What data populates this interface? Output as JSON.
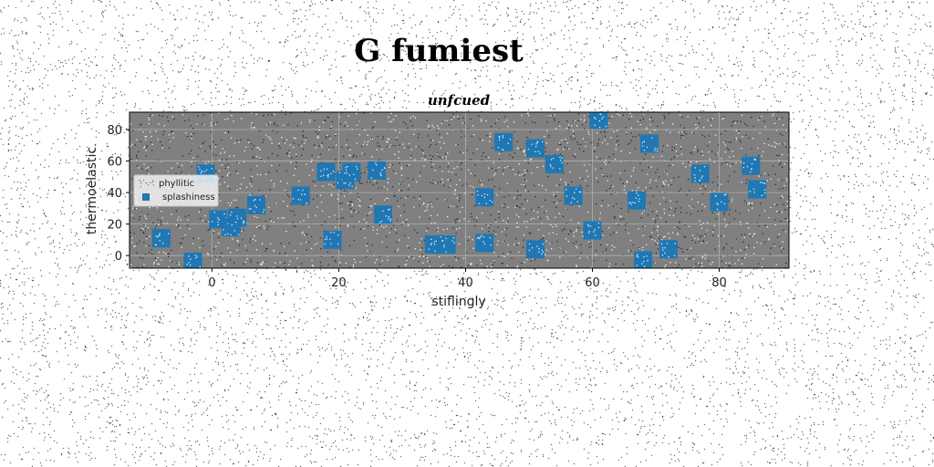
{
  "chart_data": {
    "type": "scatter",
    "title": "G fumiest",
    "subtitle": "unfcued",
    "xlabel": "stiflingly",
    "ylabel": "thermoelastic",
    "xlim": [
      -13,
      91
    ],
    "ylim": [
      -8,
      91
    ],
    "xticks": [
      0,
      20,
      40,
      60,
      80
    ],
    "yticks": [
      0,
      20,
      40,
      60,
      80
    ],
    "grid": true,
    "legend": {
      "placement": "center-left",
      "entries": [
        "phyllitic",
        "splashiness"
      ]
    },
    "colors": {
      "splashiness": "#1f77b4",
      "plot_background": "#808080",
      "grid": "#b0b0b0"
    },
    "series": [
      {
        "name": "phyllitic",
        "x": [],
        "y": []
      },
      {
        "name": "splashiness",
        "x": [
          -8,
          -3,
          -1,
          1,
          3,
          4,
          7,
          14,
          18,
          19,
          21,
          22,
          26,
          27,
          35,
          37,
          43,
          43,
          46,
          51,
          51,
          54,
          57,
          60,
          61,
          67,
          68,
          69,
          72,
          77,
          80,
          85,
          86
        ],
        "y": [
          11,
          -4,
          52,
          23,
          18,
          24,
          32,
          38,
          53,
          10,
          48,
          53,
          54,
          26,
          7,
          7,
          8,
          37,
          72,
          4,
          68,
          58,
          38,
          16,
          86,
          35,
          -3,
          71,
          4,
          52,
          34,
          57,
          42
        ]
      }
    ]
  }
}
